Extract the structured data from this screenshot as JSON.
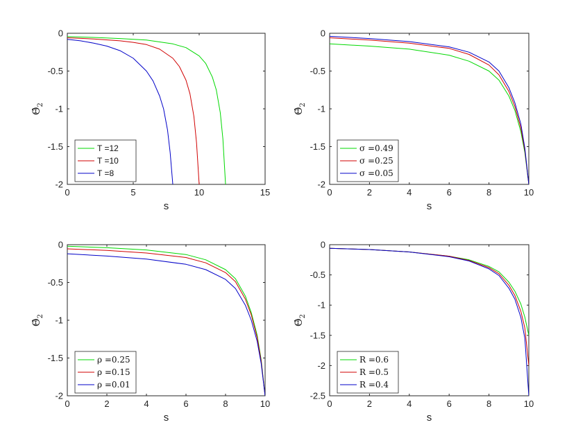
{
  "colors": {
    "green": "#00d800",
    "red": "#d00000",
    "blue": "#0000c8",
    "axis": "#262626"
  },
  "chart_data": [
    {
      "type": "line",
      "title": "",
      "xlabel": "s",
      "ylabel": "Θ̂2",
      "ylabel_main": "Θ̂",
      "ylabel_sub": "2",
      "xlim": [
        0,
        15
      ],
      "ylim": [
        -2,
        0
      ],
      "xticks": [
        0,
        5,
        10,
        15
      ],
      "yticks": [
        0,
        -0.5,
        -1,
        -1.5,
        -2
      ],
      "xtick_labels": [
        "0",
        "5",
        "10",
        "15"
      ],
      "ytick_labels": [
        "0",
        "-0.5",
        "-1",
        "-1.5",
        "-2"
      ],
      "legend_position": "bottom-left",
      "series": [
        {
          "name": "T =12",
          "color": "green",
          "x": [
            0,
            2,
            4,
            6,
            8,
            9,
            10,
            10.5,
            11,
            11.3,
            11.6,
            11.8,
            12
          ],
          "y": [
            -0.045,
            -0.055,
            -0.07,
            -0.09,
            -0.14,
            -0.19,
            -0.3,
            -0.4,
            -0.58,
            -0.75,
            -1.05,
            -1.4,
            -2
          ]
        },
        {
          "name": "T =10",
          "color": "red",
          "x": [
            0,
            2,
            4,
            5,
            6,
            7,
            8,
            8.5,
            9,
            9.3,
            9.6,
            9.8,
            10
          ],
          "y": [
            -0.06,
            -0.075,
            -0.1,
            -0.12,
            -0.15,
            -0.21,
            -0.33,
            -0.44,
            -0.62,
            -0.8,
            -1.1,
            -1.45,
            -2
          ]
        },
        {
          "name": "T =8",
          "color": "blue",
          "x": [
            0,
            1,
            2,
            3,
            4,
            5,
            6,
            6.5,
            7,
            7.3,
            7.6,
            7.8,
            8
          ],
          "y": [
            -0.08,
            -0.1,
            -0.13,
            -0.17,
            -0.23,
            -0.33,
            -0.5,
            -0.63,
            -0.83,
            -1.0,
            -1.28,
            -1.58,
            -2
          ]
        }
      ]
    },
    {
      "type": "line",
      "title": "",
      "xlabel": "s",
      "ylabel": "Θ̂2",
      "ylabel_main": "Θ̂",
      "ylabel_sub": "2",
      "xlim": [
        0,
        10
      ],
      "ylim": [
        -2,
        0
      ],
      "xticks": [
        0,
        2,
        4,
        6,
        8,
        10
      ],
      "yticks": [
        0,
        -0.5,
        -1,
        -1.5,
        -2
      ],
      "xtick_labels": [
        "0",
        "2",
        "4",
        "6",
        "8",
        "10"
      ],
      "ytick_labels": [
        "0",
        "-0.5",
        "-1",
        "-1.5",
        "-2"
      ],
      "legend_position": "bottom-left",
      "series": [
        {
          "name": "σ =0.49",
          "color": "green",
          "x": [
            0,
            2,
            4,
            6,
            7,
            8,
            8.5,
            9,
            9.3,
            9.6,
            9.8,
            10
          ],
          "y": [
            -0.14,
            -0.17,
            -0.21,
            -0.29,
            -0.37,
            -0.5,
            -0.62,
            -0.83,
            -1.02,
            -1.3,
            -1.58,
            -2
          ]
        },
        {
          "name": "σ =0.25",
          "color": "red",
          "x": [
            0,
            2,
            4,
            6,
            7,
            8,
            8.5,
            9,
            9.3,
            9.6,
            9.8,
            10
          ],
          "y": [
            -0.06,
            -0.09,
            -0.13,
            -0.2,
            -0.28,
            -0.42,
            -0.55,
            -0.77,
            -0.97,
            -1.25,
            -1.55,
            -2
          ]
        },
        {
          "name": "σ =0.05",
          "color": "blue",
          "x": [
            0,
            2,
            4,
            6,
            7,
            8,
            8.5,
            9,
            9.3,
            9.6,
            9.8,
            10
          ],
          "y": [
            -0.04,
            -0.07,
            -0.11,
            -0.18,
            -0.25,
            -0.38,
            -0.5,
            -0.72,
            -0.92,
            -1.2,
            -1.52,
            -2
          ]
        }
      ]
    },
    {
      "type": "line",
      "title": "",
      "xlabel": "s",
      "ylabel": "Θ̂2",
      "ylabel_main": "Θ̂",
      "ylabel_sub": "2",
      "xlim": [
        0,
        10
      ],
      "ylim": [
        -2,
        0
      ],
      "xticks": [
        0,
        2,
        4,
        6,
        8,
        10
      ],
      "yticks": [
        0,
        -0.5,
        -1,
        -1.5,
        -2
      ],
      "xtick_labels": [
        "0",
        "2",
        "4",
        "6",
        "8",
        "10"
      ],
      "ytick_labels": [
        "0",
        "-0.5",
        "-1",
        "-1.5",
        "-2"
      ],
      "legend_position": "bottom-left",
      "series": [
        {
          "name": "ρ =0.25",
          "color": "green",
          "x": [
            0,
            2,
            4,
            6,
            7,
            8,
            8.5,
            9,
            9.3,
            9.6,
            9.8,
            10
          ],
          "y": [
            -0.02,
            -0.04,
            -0.07,
            -0.13,
            -0.2,
            -0.33,
            -0.45,
            -0.68,
            -0.9,
            -1.2,
            -1.52,
            -2
          ]
        },
        {
          "name": "ρ =0.15",
          "color": "red",
          "x": [
            0,
            2,
            4,
            6,
            7,
            8,
            8.5,
            9,
            9.3,
            9.6,
            9.8,
            10
          ],
          "y": [
            -0.055,
            -0.075,
            -0.11,
            -0.17,
            -0.24,
            -0.37,
            -0.49,
            -0.72,
            -0.93,
            -1.23,
            -1.54,
            -2
          ]
        },
        {
          "name": "ρ =0.01",
          "color": "blue",
          "x": [
            0,
            2,
            4,
            6,
            7,
            8,
            8.5,
            9,
            9.3,
            9.6,
            9.8,
            10
          ],
          "y": [
            -0.12,
            -0.15,
            -0.19,
            -0.26,
            -0.33,
            -0.46,
            -0.58,
            -0.8,
            -1.0,
            -1.28,
            -1.57,
            -2
          ]
        }
      ]
    },
    {
      "type": "line",
      "title": "",
      "xlabel": "s",
      "ylabel": "Θ̂2",
      "ylabel_main": "Θ̂",
      "ylabel_sub": "2",
      "xlim": [
        0,
        10
      ],
      "ylim": [
        -2.5,
        0
      ],
      "xticks": [
        0,
        2,
        4,
        6,
        8,
        10
      ],
      "yticks": [
        0,
        -0.5,
        -1,
        -1.5,
        -2,
        -2.5
      ],
      "xtick_labels": [
        "0",
        "2",
        "4",
        "6",
        "8",
        "10"
      ],
      "ytick_labels": [
        "0",
        "-0.5",
        "-1",
        "-1.5",
        "-2",
        "-2.5"
      ],
      "legend_position": "bottom-left",
      "series": [
        {
          "name": "R =0.6",
          "color": "green",
          "x": [
            0,
            2,
            4,
            6,
            7,
            8,
            8.5,
            9,
            9.3,
            9.6,
            9.8,
            10
          ],
          "y": [
            -0.06,
            -0.08,
            -0.12,
            -0.19,
            -0.25,
            -0.36,
            -0.45,
            -0.62,
            -0.77,
            -0.98,
            -1.2,
            -1.5
          ]
        },
        {
          "name": "R =0.5",
          "color": "red",
          "x": [
            0,
            2,
            4,
            6,
            7,
            8,
            8.5,
            9,
            9.3,
            9.6,
            9.8,
            10
          ],
          "y": [
            -0.06,
            -0.08,
            -0.12,
            -0.19,
            -0.26,
            -0.38,
            -0.48,
            -0.67,
            -0.84,
            -1.1,
            -1.38,
            -2
          ]
        },
        {
          "name": "R =0.4",
          "color": "blue",
          "x": [
            0,
            2,
            4,
            6,
            7,
            8,
            8.5,
            9,
            9.3,
            9.6,
            9.8,
            10
          ],
          "y": [
            -0.06,
            -0.08,
            -0.12,
            -0.2,
            -0.27,
            -0.4,
            -0.51,
            -0.72,
            -0.9,
            -1.2,
            -1.55,
            -2.5
          ]
        }
      ]
    }
  ]
}
